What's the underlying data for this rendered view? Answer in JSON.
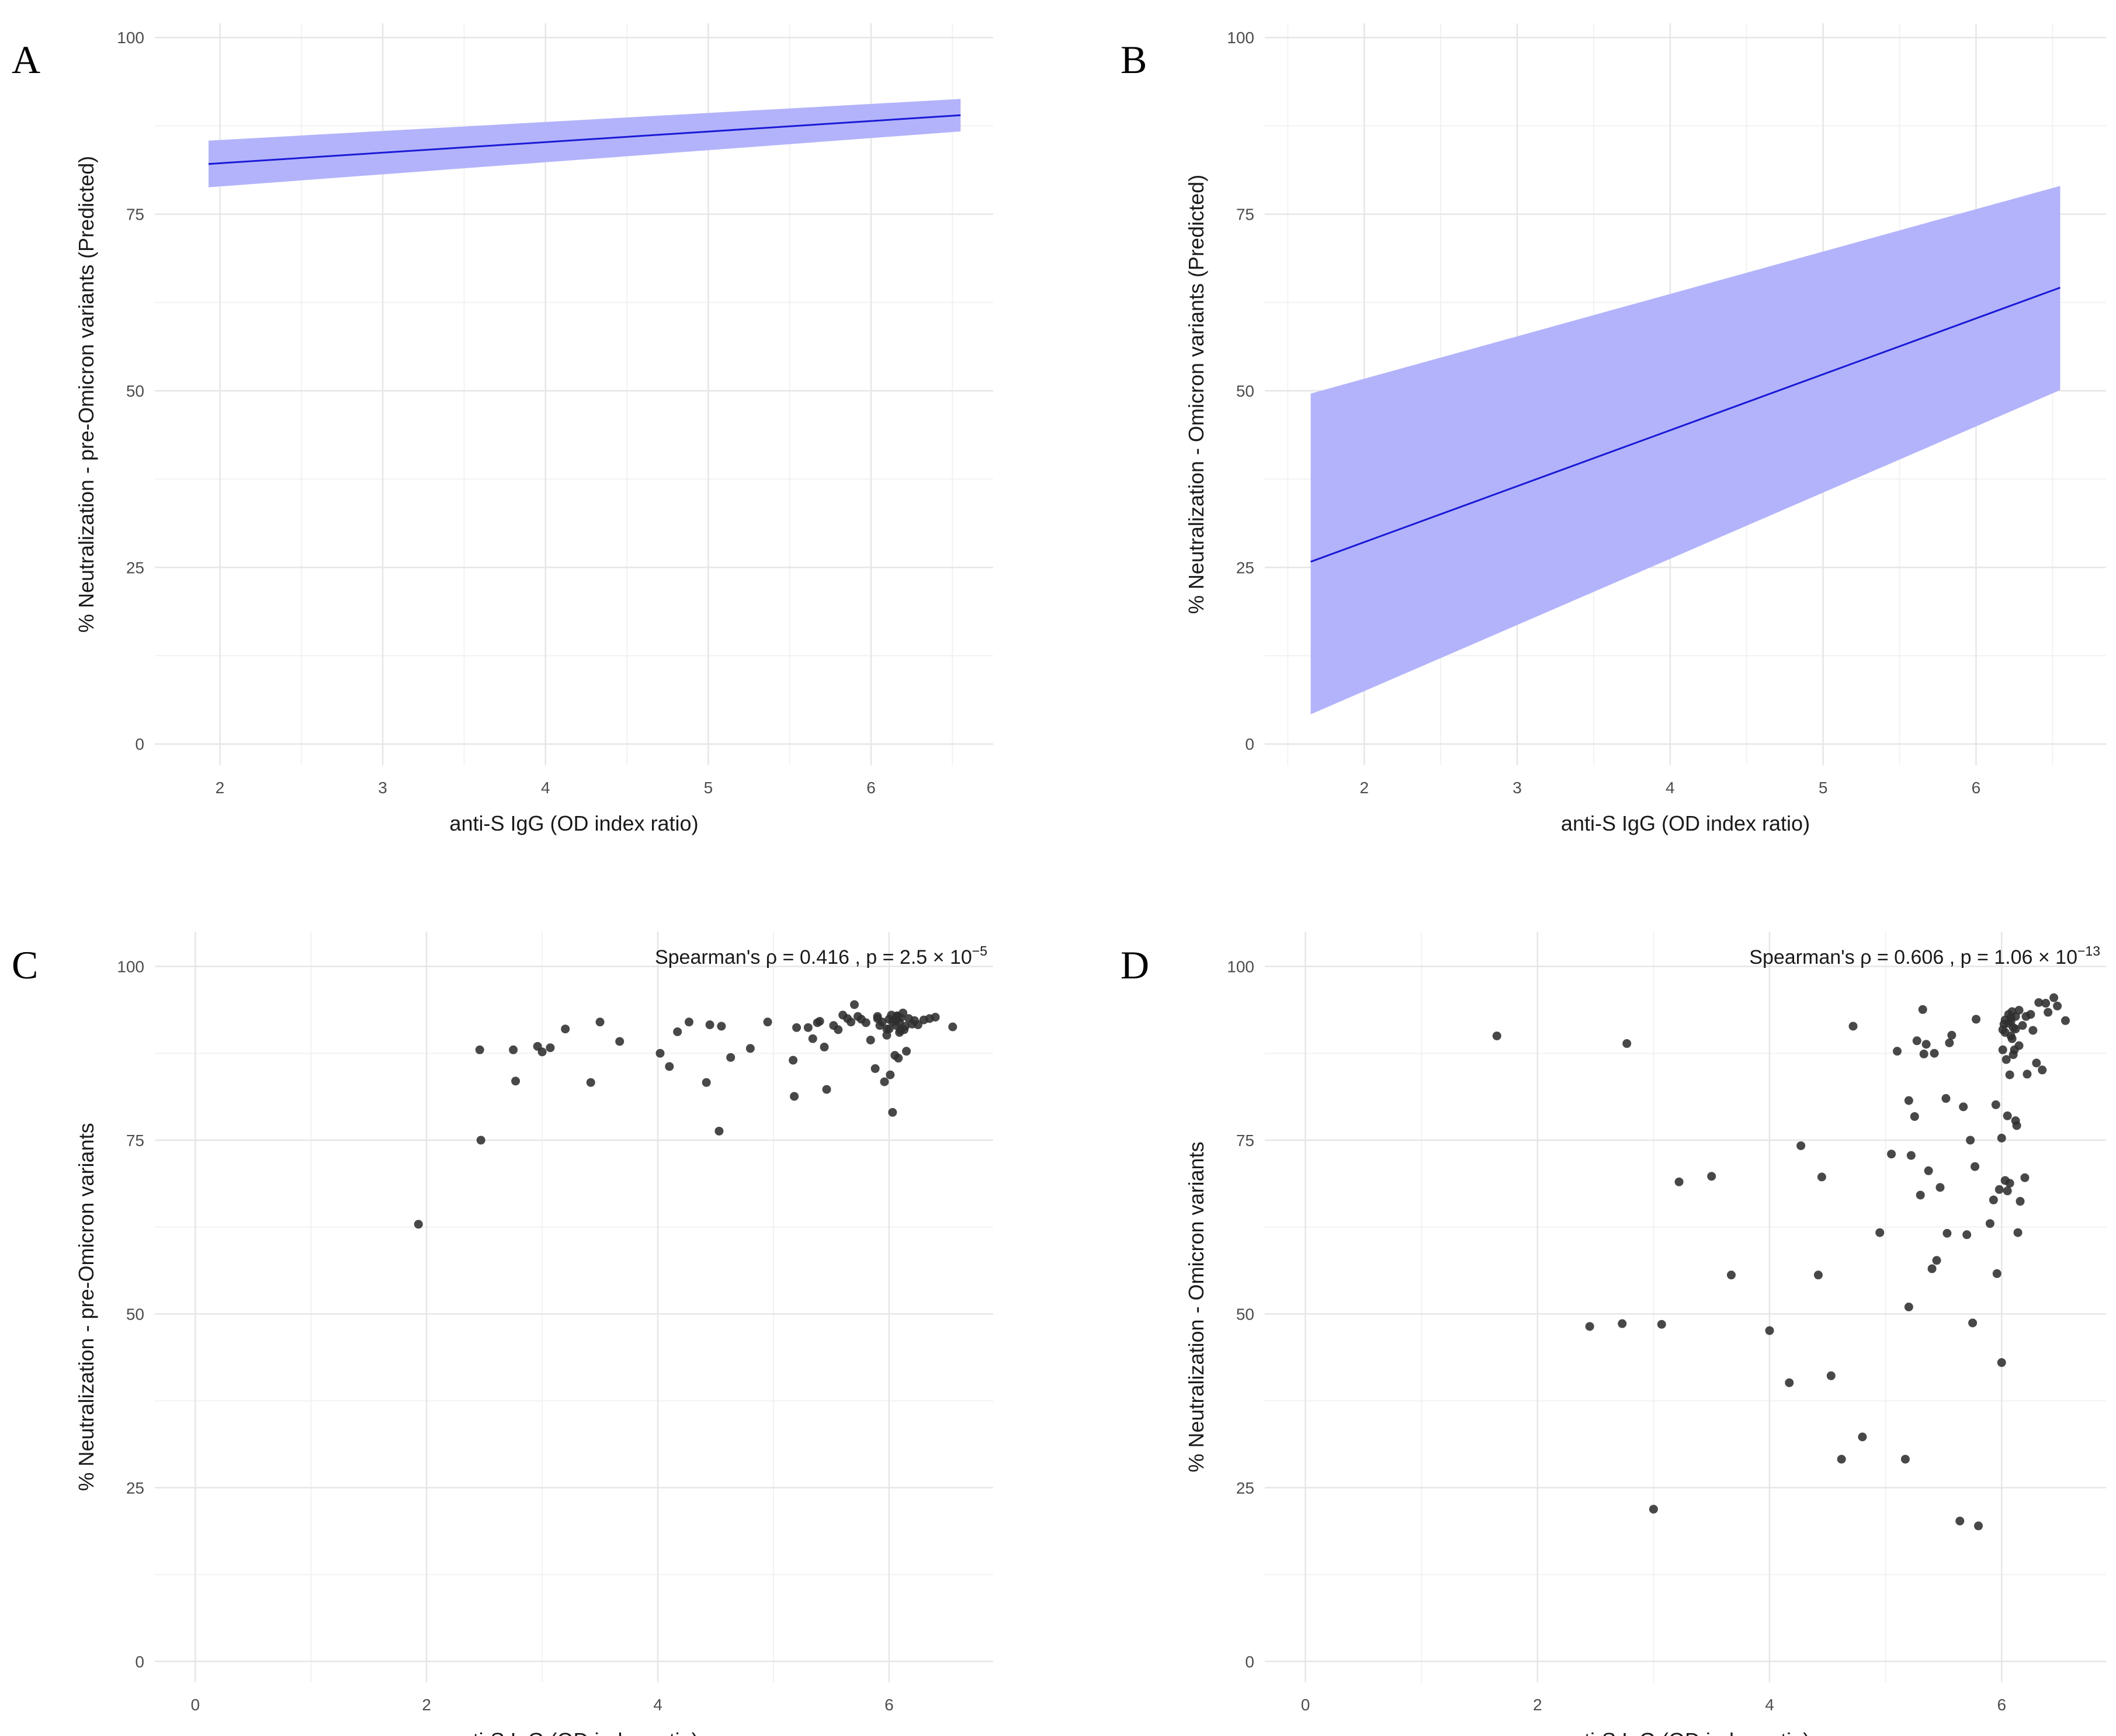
{
  "colors": {
    "ribbon": "#b3b3fb",
    "line": "#1a1ad6",
    "point": "#2f2f2f",
    "grid_major": "#e6e6e6",
    "grid_minor": "#f2f2f2"
  },
  "chart_data": [
    {
      "panel": "A",
      "type": "line",
      "title": "",
      "xlabel": "anti-S IgG (OD index ratio)",
      "ylabel": "% Neutralization - pre-Omicron variants (Predicted)",
      "xlim": [
        1.6,
        6.75
      ],
      "ylim": [
        -3,
        102
      ],
      "xticks": [
        2,
        3,
        4,
        5,
        6
      ],
      "yticks": [
        0,
        25,
        50,
        75,
        100
      ],
      "series": [
        {
          "name": "predicted",
          "x": [
            1.93,
            6.55
          ],
          "y": [
            82.1,
            89.0
          ],
          "lower": [
            78.8,
            86.7
          ],
          "upper": [
            85.4,
            91.3
          ]
        }
      ]
    },
    {
      "panel": "B",
      "type": "line",
      "title": "",
      "xlabel": "anti-S IgG (OD index ratio)",
      "ylabel": "% Neutralization - Omicron variants (Predicted)",
      "xlim": [
        1.35,
        6.85
      ],
      "ylim": [
        -3,
        102
      ],
      "xticks": [
        2,
        3,
        4,
        5,
        6
      ],
      "yticks": [
        0,
        25,
        50,
        75,
        100
      ],
      "series": [
        {
          "name": "predicted",
          "x": [
            1.65,
            6.55
          ],
          "y": [
            25.8,
            64.6
          ],
          "lower": [
            4.2,
            50.1
          ],
          "upper": [
            49.6,
            79.0
          ]
        }
      ]
    },
    {
      "panel": "C",
      "type": "scatter",
      "title": "",
      "xlabel": "anti-S IgG (OD index ratio)",
      "ylabel": "% Neutralization - pre-Omicron variants",
      "xlim": [
        -0.35,
        6.9
      ],
      "ylim": [
        -3,
        105
      ],
      "xticks": [
        0,
        2,
        4,
        6
      ],
      "yticks": [
        0,
        25,
        50,
        75,
        100
      ],
      "annotation": {
        "prefix": "Spearman's ρ = 0.416 , p = 2.5 × 10",
        "exponent": "−5"
      },
      "points": {
        "x": [
          1.93,
          2.46,
          2.47,
          2.75,
          2.77,
          2.96,
          3.0,
          3.07,
          3.2,
          3.42,
          3.5,
          3.67,
          4.02,
          4.1,
          4.17,
          4.27,
          4.42,
          4.45,
          4.53,
          4.55,
          4.63,
          4.8,
          4.95,
          5.17,
          5.18,
          5.2,
          5.3,
          5.34,
          5.38,
          5.4,
          5.44,
          5.46,
          5.52,
          5.56,
          5.6,
          5.64,
          5.67,
          5.7,
          5.73,
          5.76,
          5.8,
          5.84,
          5.88,
          5.9,
          5.92,
          5.94,
          5.96,
          5.98,
          6.0,
          6.01,
          6.02,
          6.03,
          6.05,
          6.06,
          6.07,
          6.08,
          6.09,
          6.1,
          6.12,
          6.13,
          6.15,
          6.17,
          6.2,
          6.22,
          6.25,
          6.3,
          6.35,
          6.4,
          6.55,
          6.1,
          6.05,
          5.9,
          5.98,
          6.03,
          6.07,
          6.14,
          6.0,
          6.09
        ],
        "y": [
          62.9,
          88.0,
          75.0,
          88.0,
          83.5,
          88.5,
          87.7,
          88.3,
          91.0,
          83.3,
          92.0,
          89.2,
          87.5,
          85.6,
          90.6,
          92.0,
          83.3,
          91.6,
          76.3,
          91.4,
          86.9,
          88.2,
          92.0,
          86.5,
          81.3,
          91.2,
          91.2,
          89.6,
          91.9,
          92.1,
          88.4,
          82.3,
          91.5,
          90.9,
          93.0,
          92.5,
          92.0,
          94.5,
          92.8,
          92.4,
          91.9,
          89.4,
          85.3,
          92.5,
          91.5,
          92.0,
          83.4,
          90.1,
          91.0,
          84.4,
          93.0,
          79.0,
          87.2,
          91.5,
          92.8,
          86.8,
          91.9,
          92.6,
          93.3,
          90.9,
          87.8,
          92.5,
          91.7,
          92.2,
          91.6,
          92.3,
          92.5,
          92.7,
          91.3,
          90.8,
          92.3,
          92.8,
          91.0,
          92.0,
          92.9,
          91.4,
          92.4,
          90.5
        ]
      }
    },
    {
      "panel": "D",
      "type": "scatter",
      "title": "",
      "xlabel": "anti-S IgG (OD index ratio)",
      "ylabel": "% Neutralization - Omicron variants",
      "xlim": [
        -0.35,
        6.9
      ],
      "ylim": [
        -3,
        105
      ],
      "xticks": [
        0,
        2,
        4,
        6
      ],
      "yticks": [
        0,
        25,
        50,
        75,
        100
      ],
      "annotation": {
        "prefix": "Spearman's ρ = 0.606 , p = 1.06 × 10",
        "exponent": "−13"
      },
      "points": {
        "x": [
          1.65,
          2.45,
          2.73,
          2.77,
          3.0,
          3.07,
          3.22,
          3.5,
          3.67,
          4.0,
          4.17,
          4.27,
          4.42,
          4.45,
          4.53,
          4.62,
          4.72,
          4.8,
          4.95,
          5.05,
          5.1,
          5.17,
          5.2,
          5.2,
          5.22,
          5.25,
          5.27,
          5.3,
          5.32,
          5.33,
          5.35,
          5.37,
          5.4,
          5.42,
          5.44,
          5.47,
          5.52,
          5.53,
          5.55,
          5.57,
          5.64,
          5.67,
          5.7,
          5.73,
          5.75,
          5.77,
          5.78,
          5.8,
          5.9,
          5.93,
          5.95,
          5.96,
          5.98,
          6.0,
          6.0,
          6.01,
          6.02,
          6.03,
          6.03,
          6.04,
          6.05,
          6.05,
          6.06,
          6.07,
          6.07,
          6.08,
          6.08,
          6.09,
          6.1,
          6.1,
          6.11,
          6.12,
          6.12,
          6.13,
          6.14,
          6.15,
          6.16,
          6.18,
          6.2,
          6.21,
          6.22,
          6.25,
          6.27,
          6.3,
          6.32,
          6.35,
          6.38,
          6.4,
          6.45,
          6.48,
          6.55,
          6.03,
          6.06,
          6.09,
          6.12,
          6.15,
          6.08,
          6.01
        ],
        "y": [
          90.0,
          48.2,
          48.6,
          88.9,
          21.9,
          48.5,
          69.0,
          69.8,
          55.6,
          47.6,
          40.1,
          74.2,
          55.6,
          69.7,
          41.1,
          29.1,
          91.4,
          32.3,
          61.7,
          73.0,
          87.8,
          29.1,
          51.0,
          80.7,
          72.8,
          78.4,
          89.3,
          67.1,
          93.8,
          87.4,
          88.8,
          70.6,
          56.5,
          87.5,
          57.7,
          68.2,
          81.0,
          61.6,
          89.0,
          90.1,
          20.2,
          79.8,
          61.4,
          75.0,
          48.7,
          71.2,
          92.4,
          19.5,
          63.0,
          66.4,
          80.1,
          55.8,
          67.9,
          43.0,
          75.3,
          88.0,
          91.7,
          69.2,
          92.3,
          86.6,
          67.7,
          78.5,
          93.1,
          68.8,
          84.4,
          90.0,
          92.6,
          93.5,
          87.3,
          91.2,
          88.0,
          92.8,
          77.8,
          77.1,
          61.7,
          88.6,
          66.2,
          91.5,
          69.6,
          92.8,
          84.5,
          93.1,
          90.8,
          86.1,
          94.8,
          85.1,
          94.7,
          93.4,
          95.5,
          94.3,
          92.2,
          90.5,
          91.8,
          89.6,
          91.0,
          93.7,
          92.1,
          90.9
        ]
      }
    }
  ]
}
